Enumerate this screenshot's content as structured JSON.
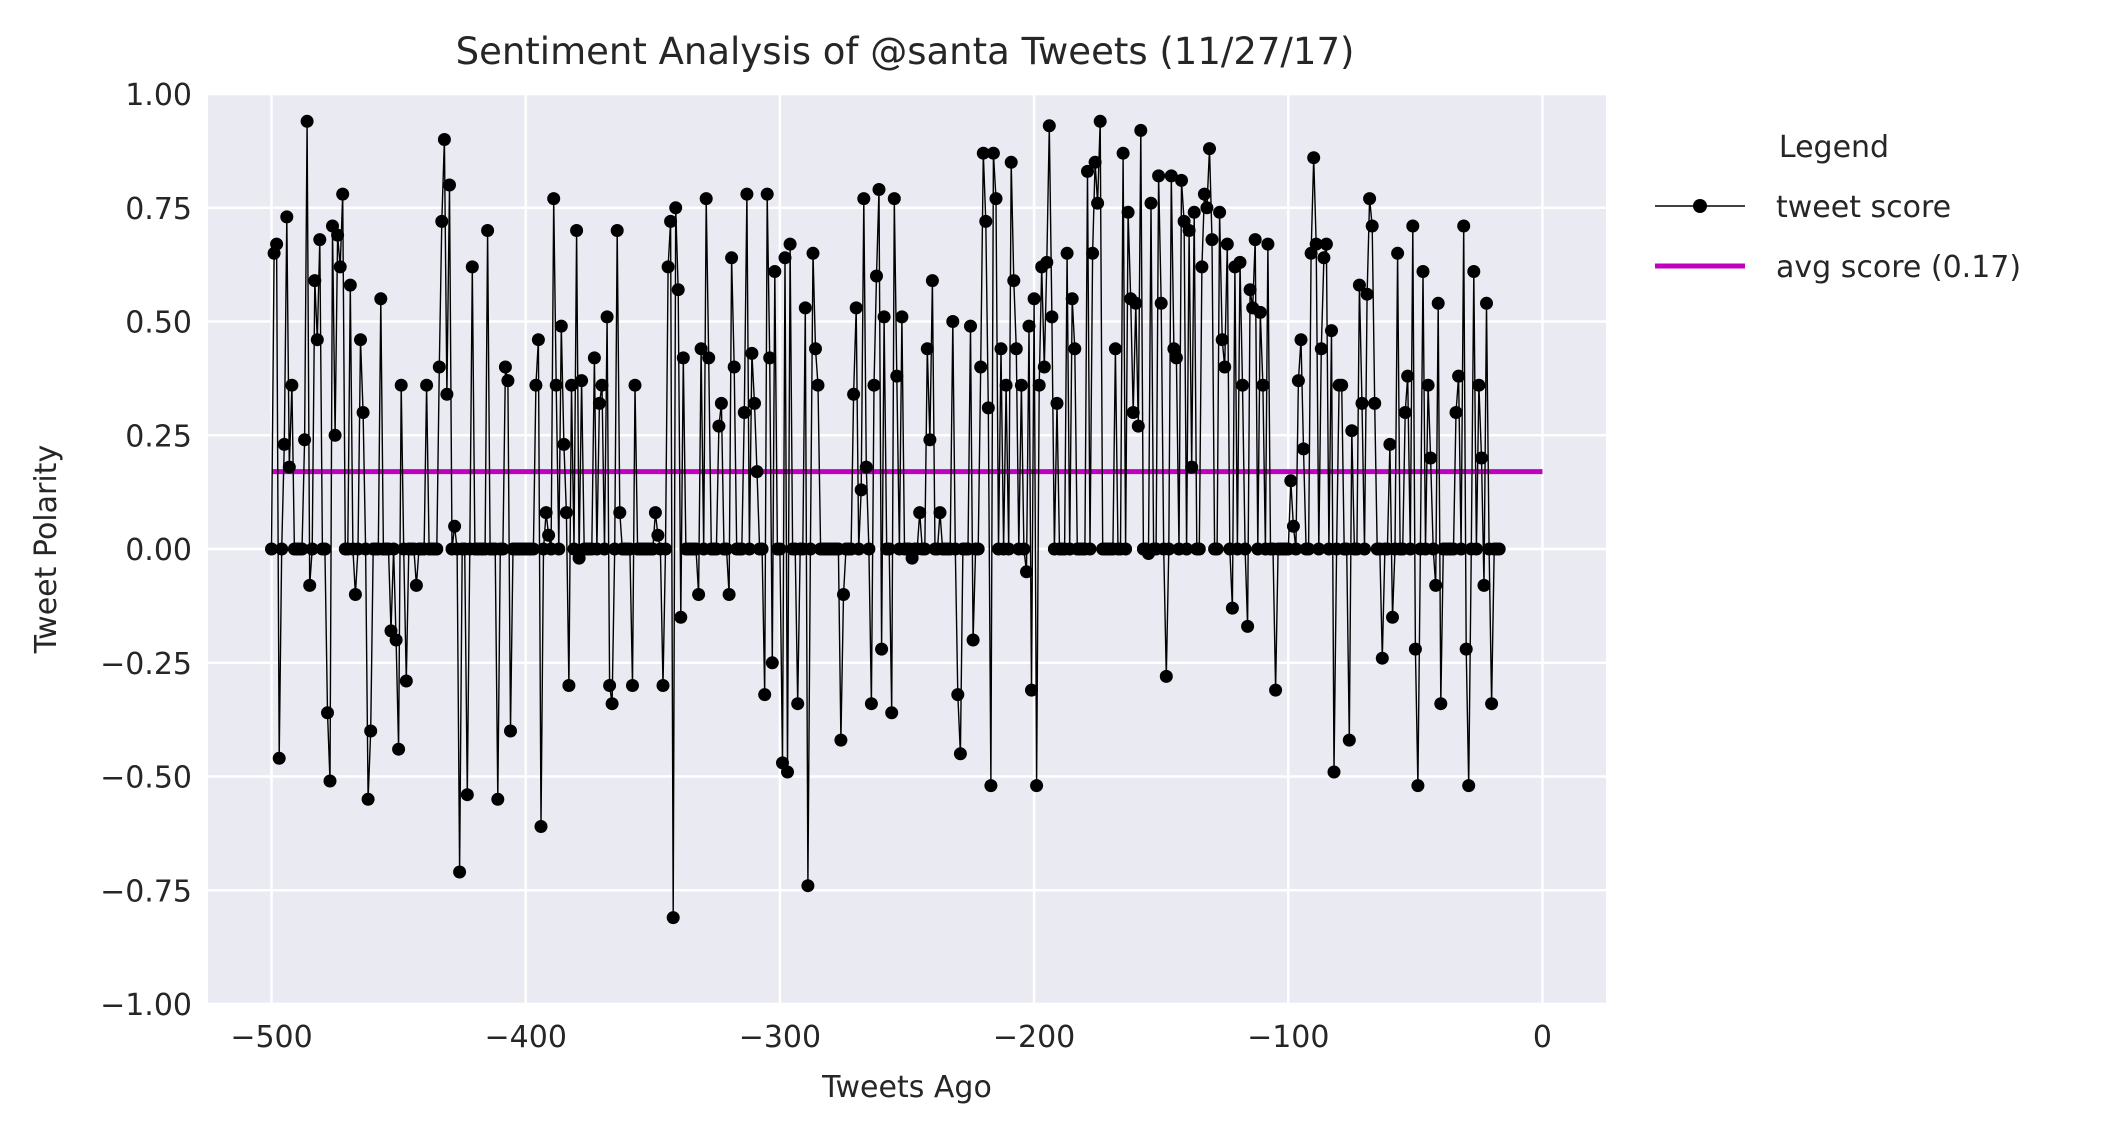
{
  "chart_data": {
    "type": "line",
    "title": "Sentiment Analysis of @santa Tweets (11/27/17)",
    "xlabel": "Tweets Ago",
    "ylabel": "Tweet Polarity",
    "xlim": [
      -525,
      25
    ],
    "ylim": [
      -1.0,
      1.0
    ],
    "x_ticks": [
      -500,
      -400,
      -300,
      -200,
      -100,
      0
    ],
    "x_tick_labels": [
      "−500",
      "−400",
      "−300",
      "−200",
      "−100",
      "0"
    ],
    "y_ticks": [
      1.0,
      0.75,
      0.5,
      0.25,
      0.0,
      -0.25,
      -0.5,
      -0.75,
      -1.0
    ],
    "y_tick_labels": [
      "1.00",
      "0.75",
      "0.50",
      "0.25",
      "0.00",
      "−0.25",
      "−0.50",
      "−0.75",
      "−1.00"
    ],
    "grid": true,
    "background_color": "#eaeaf2",
    "legend": {
      "title": "Legend",
      "placement": "outside-right",
      "entries": [
        {
          "label": "tweet score",
          "color": "#000000",
          "style": "line-marker"
        },
        {
          "label": "avg score (0.17)",
          "color": "#bf00bf",
          "style": "line"
        }
      ]
    },
    "series": [
      {
        "name": "tweet score",
        "color": "#000000",
        "x_start": -500,
        "x_step": 1,
        "values": [
          0,
          0.65,
          0.67,
          -0.46,
          0,
          0.23,
          0.73,
          0.18,
          0.36,
          0,
          0,
          0,
          0,
          0.24,
          0.94,
          -0.08,
          0,
          0.59,
          0.46,
          0.68,
          0,
          0,
          -0.36,
          -0.51,
          0.71,
          0.25,
          0.69,
          0.62,
          0.78,
          0,
          0,
          0.58,
          0,
          -0.1,
          0,
          0.46,
          0.3,
          0,
          -0.55,
          -0.4,
          0,
          0,
          0,
          0.55,
          0,
          0,
          0,
          -0.18,
          0,
          -0.2,
          -0.44,
          0.36,
          0,
          -0.29,
          0,
          0,
          0,
          -0.08,
          0,
          0,
          0,
          0.36,
          0,
          0,
          0,
          0,
          0.4,
          0.72,
          0.9,
          0.34,
          0.8,
          0,
          0.05,
          0,
          -0.71,
          0,
          0,
          -0.54,
          0,
          0.62,
          0,
          0,
          0,
          0,
          0,
          0.7,
          0,
          0,
          0,
          -0.55,
          0,
          0,
          0.4,
          0.37,
          -0.4,
          0,
          0,
          0,
          0,
          0,
          0,
          0,
          0,
          0,
          0.36,
          0.46,
          -0.61,
          0,
          0.08,
          0.03,
          0,
          0.77,
          0.36,
          0,
          0.49,
          0.23,
          0.08,
          -0.3,
          0.36,
          0,
          0.7,
          -0.02,
          0.37,
          0,
          0,
          0,
          0,
          0.42,
          0,
          0.32,
          0.36,
          0,
          0.51,
          -0.3,
          -0.34,
          0,
          0.7,
          0.08,
          0,
          0,
          0,
          0,
          -0.3,
          0.36,
          0,
          0,
          0,
          0,
          0,
          0,
          0,
          0.08,
          0.03,
          0,
          -0.3,
          0,
          0.62,
          0.72,
          -0.81,
          0.75,
          0.57,
          -0.15,
          0.42,
          0,
          0,
          0,
          0,
          0,
          -0.1,
          0.44,
          0,
          0.77,
          0.42,
          0,
          0,
          0,
          0.27,
          0.32,
          0,
          0,
          -0.1,
          0.64,
          0.4,
          0,
          0,
          0,
          0.3,
          0.78,
          0,
          0.43,
          0.32,
          0.17,
          0,
          0,
          -0.32,
          0.78,
          0.42,
          -0.25,
          0.61,
          0,
          0,
          -0.47,
          0.64,
          -0.49,
          0.67,
          0,
          0,
          -0.34,
          0,
          0,
          0.53,
          -0.74,
          0,
          0.65,
          0.44,
          0.36,
          0,
          0,
          0,
          0,
          0,
          0,
          0,
          0,
          -0.42,
          -0.1,
          0,
          0,
          0,
          0.34,
          0.53,
          0,
          0.13,
          0.77,
          0.18,
          0,
          -0.34,
          0.36,
          0.6,
          0.79,
          -0.22,
          0.51,
          0,
          0,
          -0.36,
          0.77,
          0.38,
          0,
          0.51,
          0,
          0,
          0,
          -0.02,
          0,
          0,
          0.08,
          0,
          0,
          0.44,
          0.24,
          0.59,
          0,
          0,
          0.08,
          0,
          0,
          0,
          0,
          0.5,
          0,
          -0.32,
          -0.45,
          0,
          0,
          0,
          0.49,
          -0.2,
          0,
          0,
          0.4,
          0.87,
          0.72,
          0.31,
          -0.52,
          0.87,
          0.77,
          0,
          0.44,
          0,
          0.36,
          0,
          0.85,
          0.59,
          0.44,
          0,
          0.36,
          0,
          -0.05,
          0.49,
          -0.31,
          0.55,
          -0.52,
          0.36,
          0.62,
          0.4,
          0.63,
          0.93,
          0.51,
          0,
          0.32,
          0,
          0,
          0,
          0.65,
          0,
          0.55,
          0.44,
          0,
          0,
          0,
          0,
          0.83,
          0,
          0.65,
          0.85,
          0.76,
          0.94,
          0,
          0,
          0,
          0,
          0,
          0.44,
          0,
          0,
          0.87,
          0,
          0.74,
          0.55,
          0.3,
          0.54,
          0.27,
          0.92,
          0,
          0,
          -0.01,
          0.76,
          0,
          0,
          0.82,
          0.54,
          0,
          -0.28,
          0,
          0.82,
          0.44,
          0.42,
          0,
          0.81,
          0.72,
          0,
          0.7,
          0.18,
          0.74,
          0,
          0,
          0.62,
          0.78,
          0.75,
          0.88,
          0.68,
          0,
          0,
          0.74,
          0.46,
          0.4,
          0.67,
          0,
          -0.13,
          0.62,
          0,
          0.63,
          0.36,
          0,
          -0.17,
          0.57,
          0.53,
          0.68,
          0,
          0.52,
          0.36,
          0,
          0.67,
          0,
          0,
          -0.31,
          0,
          0,
          0,
          0,
          0,
          0.15,
          0.05,
          0,
          0.37,
          0.46,
          0.22,
          0,
          0,
          0.65,
          0.86,
          0.67,
          0,
          0.44,
          0.64,
          0.67,
          0,
          0.48,
          -0.49,
          0,
          0.36,
          0.36,
          0,
          0,
          -0.42,
          0.26,
          0,
          0,
          0.58,
          0.32,
          0,
          0.56,
          0.77,
          0.71,
          0.32,
          0,
          0,
          -0.24,
          0,
          0,
          0.23,
          -0.15,
          0,
          0.65,
          0,
          0,
          0.3,
          0.38,
          0,
          0.71,
          -0.22,
          -0.52,
          0,
          0.61,
          0,
          0.36,
          0.2,
          0,
          -0.08,
          0.54,
          -0.34,
          0,
          0,
          0,
          0,
          0,
          0.3,
          0.38,
          0,
          0.71,
          -0.22,
          -0.52,
          0,
          0.61,
          0,
          0.36,
          0.2,
          -0.08,
          0.54,
          0,
          -0.34,
          0,
          0,
          0
        ]
      },
      {
        "name": "avg score (0.17)",
        "color": "#bf00bf",
        "x": [
          -500,
          0
        ],
        "values": [
          0.17,
          0.17
        ]
      }
    ]
  }
}
